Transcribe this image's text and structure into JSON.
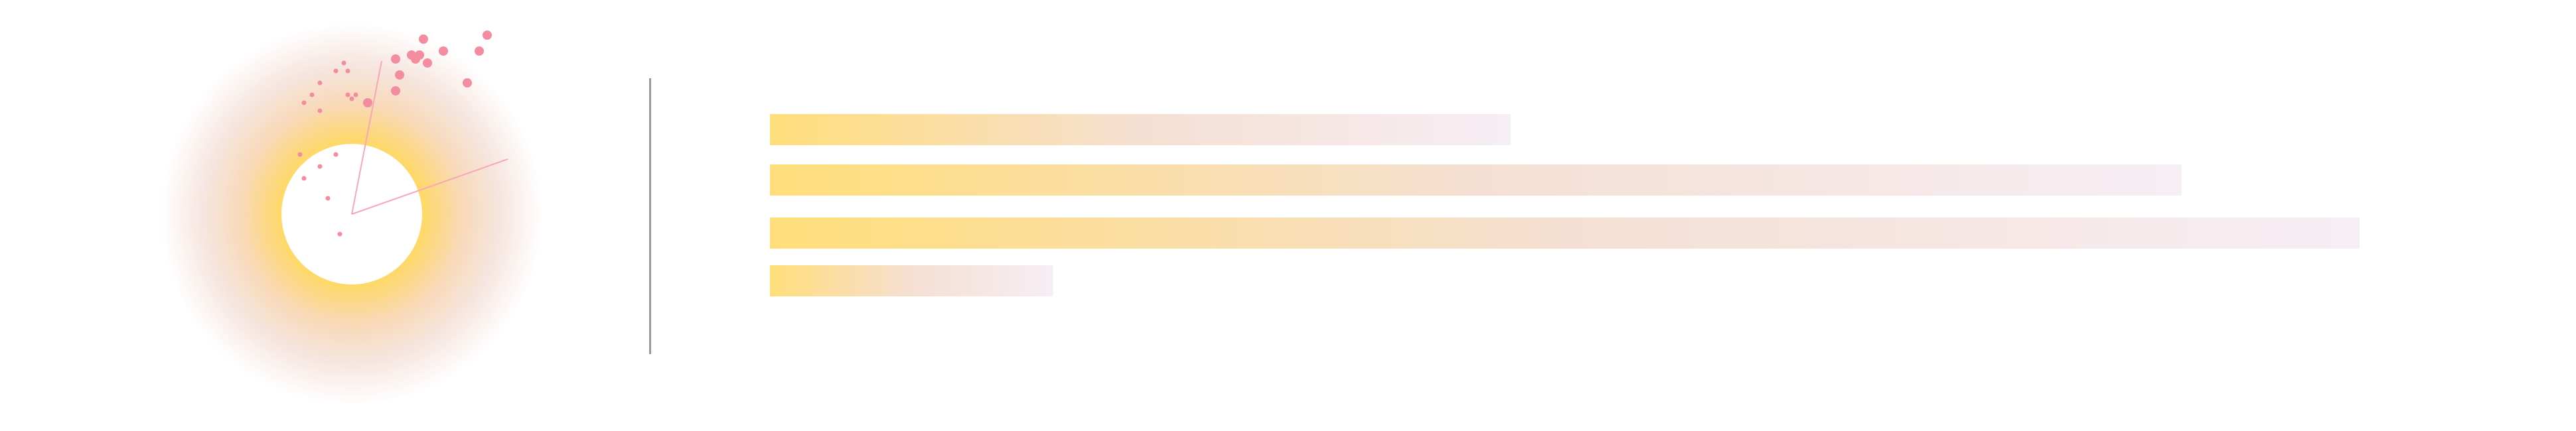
{
  "chart_data": [
    {
      "type": "scatter",
      "title": "",
      "xlabel": "",
      "ylabel": "",
      "grid": false,
      "colors": {
        "halo_inner": "#ffd86a",
        "halo_mid": "#f6e6e0",
        "halo_outer": "#f3e8f0",
        "points": "#f48ca0",
        "rays": "#f7a7b5"
      },
      "points_large": [
        [
          0.04,
          0.28
        ],
        [
          0.11,
          0.31
        ],
        [
          0.12,
          0.35
        ],
        [
          0.11,
          0.39
        ],
        [
          0.15,
          0.4
        ],
        [
          0.17,
          0.4
        ],
        [
          0.23,
          0.41
        ],
        [
          0.16,
          0.39
        ],
        [
          0.19,
          0.38
        ],
        [
          0.18,
          0.44
        ],
        [
          0.29,
          0.33
        ],
        [
          0.32,
          0.41
        ],
        [
          0.34,
          0.45
        ]
      ],
      "points_small": [
        [
          -0.03,
          -0.05
        ],
        [
          -0.04,
          0.15
        ],
        [
          -0.08,
          0.12
        ],
        [
          -0.13,
          0.15
        ],
        [
          -0.12,
          0.09
        ],
        [
          -0.06,
          0.04
        ],
        [
          -0.08,
          0.26
        ],
        [
          -0.12,
          0.28
        ],
        [
          -0.1,
          0.3
        ],
        [
          -0.08,
          0.33
        ],
        [
          -0.04,
          0.36
        ],
        [
          -0.02,
          0.38
        ],
        [
          -0.01,
          0.36
        ],
        [
          0.0,
          0.29
        ],
        [
          -0.01,
          0.3
        ],
        [
          0.01,
          0.3
        ]
      ],
      "rays_deg": [
        16,
        80
      ]
    },
    {
      "type": "bar",
      "orientation": "horizontal",
      "title": "",
      "xlabel": "",
      "ylabel": "",
      "grid": false,
      "categories": [
        "",
        "",
        "",
        ""
      ],
      "values": [
        0.466,
        0.888,
        1.0,
        0.178
      ],
      "xlim": [
        0,
        1
      ],
      "colors": {
        "gradient_start": "#ffde7a",
        "gradient_mid": "#f5dfd2",
        "gradient_end": "#f6eef5"
      }
    }
  ]
}
